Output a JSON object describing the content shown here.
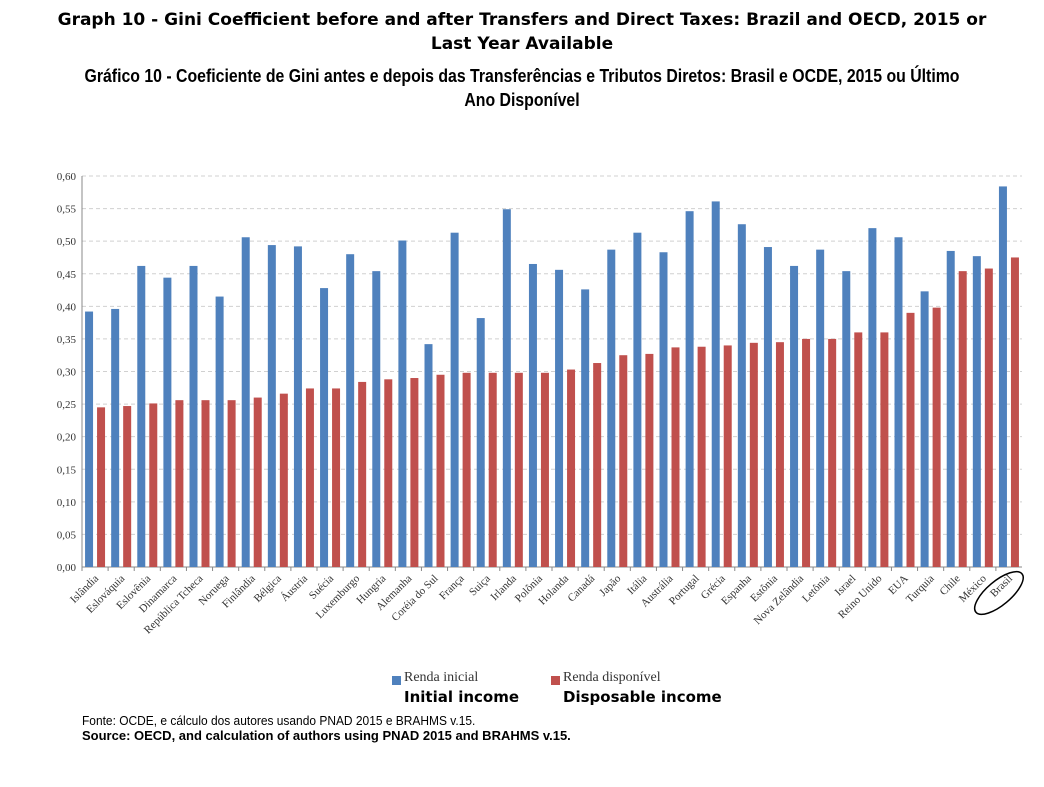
{
  "title_en": [
    "Graph 10 - Gini Coefficient before and after Transfers and Direct Taxes: Brazil and OECD, 2015 or",
    "Last Year Available"
  ],
  "title_pt": [
    "Gráfico 10 - Coeficiente de Gini antes e depois das Transferências e Tributos Diretos: Brasil e OCDE, 2015 ou Último",
    "Ano Disponível"
  ],
  "colors": {
    "initial": "#4f81bd",
    "disposable": "#c0504d",
    "grid": "#d0d0d0",
    "highlight_ellipse": "#000000"
  },
  "chart_data": {
    "type": "bar",
    "ylim": [
      0,
      0.6
    ],
    "yticks": [
      "0,00",
      "0,05",
      "0,10",
      "0,15",
      "0,20",
      "0,25",
      "0,30",
      "0,35",
      "0,40",
      "0,45",
      "0,50",
      "0,55",
      "0,60"
    ],
    "grid": true,
    "legend_placement": "bottom",
    "highlighted_category": "Brasil",
    "categories": [
      "Islândia",
      "Eslováquia",
      "Eslovênia",
      "Dinamarca",
      "República Tcheca",
      "Noruega",
      "Finlândia",
      "Bélgica",
      "Áustria",
      "Suécia",
      "Luxemburgo",
      "Hungria",
      "Alemanha",
      "Coréia do Sul",
      "França",
      "Suiça",
      "Irlanda",
      "Polônia",
      "Holanda",
      "Canadá",
      "Japão",
      "Itália",
      "Austrália",
      "Portugal",
      "Grécia",
      "Espanha",
      "Estônia",
      "Nova Zelândia",
      "Letônia",
      "Israel",
      "Reino Unido",
      "EUA",
      "Turquia",
      "Chile",
      "México",
      "Brasil"
    ],
    "series": [
      {
        "name": "Renda inicial",
        "name_en": "Initial income",
        "values": [
          0.392,
          0.396,
          0.462,
          0.444,
          0.462,
          0.415,
          0.506,
          0.494,
          0.492,
          0.428,
          0.48,
          0.454,
          0.501,
          0.342,
          0.513,
          0.382,
          0.549,
          0.465,
          0.456,
          0.426,
          0.487,
          0.513,
          0.483,
          0.546,
          0.561,
          0.526,
          0.491,
          0.462,
          0.487,
          0.454,
          0.52,
          0.506,
          0.423,
          0.485,
          0.477,
          0.584
        ]
      },
      {
        "name": "Renda disponível",
        "name_en": "Disposable income",
        "values": [
          0.245,
          0.247,
          0.251,
          0.256,
          0.256,
          0.256,
          0.26,
          0.266,
          0.274,
          0.274,
          0.284,
          0.288,
          0.29,
          0.295,
          0.298,
          0.298,
          0.298,
          0.298,
          0.303,
          0.313,
          0.325,
          0.327,
          0.337,
          0.338,
          0.34,
          0.344,
          0.345,
          0.35,
          0.35,
          0.36,
          0.36,
          0.39,
          0.398,
          0.454,
          0.458,
          0.475
        ]
      }
    ]
  },
  "source_pt": "Fonte: OCDE, e cálculo dos autores usando PNAD 2015 e BRAHMS v.15.",
  "source_en": "Source: OECD, and calculation of authors using PNAD 2015 and BRAHMS v.15."
}
